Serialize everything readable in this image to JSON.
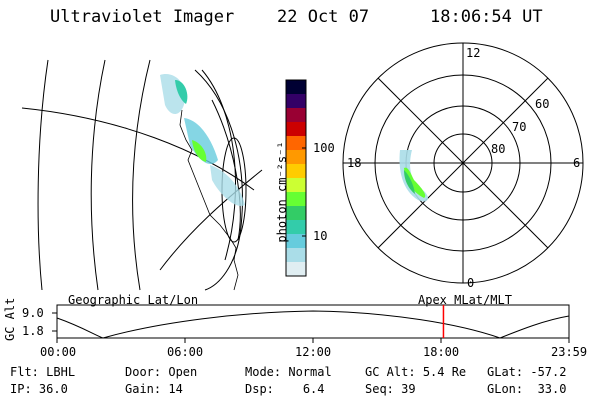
{
  "header": {
    "instrument": "Ultraviolet Imager",
    "date": "22 Oct 07",
    "time": "18:06:54 UT"
  },
  "colorbar": {
    "label": "photon cm⁻²s⁻¹",
    "ticks": [
      "100",
      "10"
    ],
    "colors": [
      "#000033",
      "#330066",
      "#990033",
      "#cc0000",
      "#ff6600",
      "#ff9900",
      "#ffcc00",
      "#ccff33",
      "#66ff33",
      "#33cc66",
      "#33ccaa",
      "#66ccdd",
      "#aadde8",
      "#e0eef2"
    ]
  },
  "polar": {
    "mlt_labels": [
      "12",
      "18",
      "6",
      "0"
    ],
    "lat_labels": [
      "60",
      "70",
      "80"
    ]
  },
  "timeline": {
    "left_title": "Geographic Lat/Lon",
    "right_title": "Apex MLat/MLT",
    "y_axis_label": "GC Alt",
    "y_ticks": [
      "9.0",
      "1.8"
    ],
    "x_ticks": [
      "00:00",
      "06:00",
      "12:00",
      "18:00",
      "23:59"
    ],
    "current_time_fraction": 0.7548,
    "marker_color": "#ff0000"
  },
  "info": {
    "row1": [
      {
        "key": "Flt:",
        "val": "LBHL"
      },
      {
        "key": "Door:",
        "val": "Open"
      },
      {
        "key": "Mode:",
        "val": "Normal"
      },
      {
        "key": "GC Alt:",
        "val": "5.4 Re"
      },
      {
        "key": "GLat:",
        "val": "-57.2"
      }
    ],
    "row2": [
      {
        "key": "IP:",
        "val": "36.0"
      },
      {
        "key": "Gain:",
        "val": "14"
      },
      {
        "key": "Dsp:",
        "val": "6.4"
      },
      {
        "key": "Seq:",
        "val": "39"
      },
      {
        "key": "GLon:",
        "val": "33.0"
      }
    ]
  }
}
